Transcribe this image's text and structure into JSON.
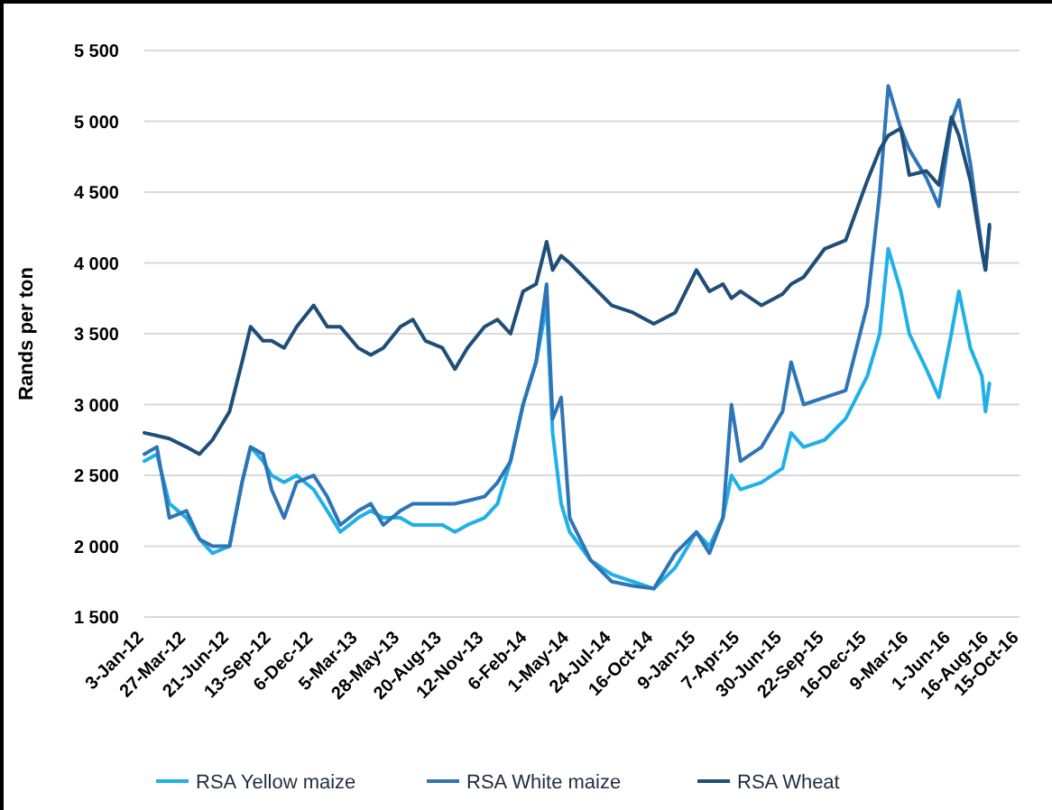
{
  "chart_data": {
    "type": "line",
    "ylabel": "Rands per ton",
    "x": [
      "2012-01-03",
      "2012-01-28",
      "2012-02-22",
      "2012-03-27",
      "2012-04-22",
      "2012-05-18",
      "2012-06-21",
      "2012-07-16",
      "2012-08-02",
      "2012-08-27",
      "2012-09-13",
      "2012-10-08",
      "2012-11-02",
      "2012-12-06",
      "2013-01-02",
      "2013-01-28",
      "2013-03-05",
      "2013-03-30",
      "2013-04-24",
      "2013-05-28",
      "2013-06-22",
      "2013-07-17",
      "2013-08-20",
      "2013-09-14",
      "2013-10-09",
      "2013-11-12",
      "2013-12-08",
      "2014-01-03",
      "2014-01-28",
      "2014-02-23",
      "2014-03-16",
      "2014-03-28",
      "2014-04-14",
      "2014-05-01",
      "2014-06-12",
      "2014-07-24",
      "2014-09-04",
      "2014-10-16",
      "2014-11-28",
      "2015-01-09",
      "2015-02-04",
      "2015-03-03",
      "2015-03-20",
      "2015-04-07",
      "2015-05-19",
      "2015-06-30",
      "2015-07-17",
      "2015-08-11",
      "2015-09-22",
      "2015-11-03",
      "2015-12-16",
      "2016-01-10",
      "2016-01-27",
      "2016-02-21",
      "2016-03-09",
      "2016-04-12",
      "2016-05-07",
      "2016-06-01",
      "2016-06-16",
      "2016-07-09",
      "2016-08-01",
      "2016-08-08",
      "2016-08-16"
    ],
    "series": [
      {
        "name": "RSA Yellow maize",
        "color": "#1fb0e8",
        "values": [
          2600,
          2650,
          2300,
          2200,
          2050,
          1950,
          2000,
          2450,
          2700,
          2600,
          2500,
          2450,
          2500,
          2400,
          2250,
          2100,
          2200,
          2250,
          2200,
          2200,
          2150,
          2150,
          2150,
          2100,
          2150,
          2200,
          2300,
          2600,
          3000,
          3300,
          3700,
          2800,
          2300,
          2100,
          1900,
          1800,
          1750,
          1700,
          1850,
          2100,
          2000,
          2200,
          2500,
          2400,
          2450,
          2550,
          2800,
          2700,
          2750,
          2900,
          3200,
          3500,
          4100,
          3800,
          3500,
          3250,
          3050,
          3500,
          3800,
          3400,
          3200,
          2950,
          3150
        ]
      },
      {
        "name": "RSA White maize",
        "color": "#2e75b6",
        "values": [
          2650,
          2700,
          2200,
          2250,
          2050,
          2000,
          2000,
          2450,
          2700,
          2650,
          2400,
          2200,
          2450,
          2500,
          2350,
          2150,
          2250,
          2300,
          2150,
          2250,
          2300,
          2300,
          2300,
          2300,
          2320,
          2350,
          2450,
          2600,
          3000,
          3300,
          3850,
          2900,
          3050,
          2200,
          1900,
          1750,
          1720,
          1700,
          1950,
          2100,
          1950,
          2200,
          3000,
          2600,
          2700,
          2950,
          3300,
          3000,
          3050,
          3100,
          3700,
          4500,
          5250,
          4950,
          4800,
          4600,
          4400,
          5000,
          5150,
          4700,
          4100,
          3950,
          4250
        ]
      },
      {
        "name": "RSA Wheat",
        "color": "#1f4e79",
        "values": [
          2800,
          2780,
          2760,
          2700,
          2650,
          2750,
          2950,
          3300,
          3550,
          3450,
          3450,
          3400,
          3550,
          3700,
          3550,
          3550,
          3400,
          3350,
          3400,
          3550,
          3600,
          3450,
          3400,
          3250,
          3400,
          3550,
          3600,
          3500,
          3800,
          3850,
          4150,
          3950,
          4050,
          4000,
          3850,
          3700,
          3650,
          3570,
          3650,
          3950,
          3800,
          3850,
          3750,
          3800,
          3700,
          3780,
          3850,
          3900,
          4100,
          4160,
          4580,
          4800,
          4900,
          4950,
          4620,
          4650,
          4550,
          5030,
          4900,
          4580,
          4080,
          3950,
          4270
        ]
      }
    ],
    "xlim": [
      "2012-01-03",
      "2016-10-15"
    ],
    "xticks": [
      {
        "value": "2012-01-03",
        "label": "3-Jan-12"
      },
      {
        "value": "2012-03-27",
        "label": "27-Mar-12"
      },
      {
        "value": "2012-06-21",
        "label": "21-Jun-12"
      },
      {
        "value": "2012-09-13",
        "label": "13-Sep-12"
      },
      {
        "value": "2012-12-06",
        "label": "6-Dec-12"
      },
      {
        "value": "2013-03-05",
        "label": "5-Mar-13"
      },
      {
        "value": "2013-05-28",
        "label": "28-May-13"
      },
      {
        "value": "2013-08-20",
        "label": "20-Aug-13"
      },
      {
        "value": "2013-11-12",
        "label": "12-Nov-13"
      },
      {
        "value": "2014-02-06",
        "label": "6-Feb-14"
      },
      {
        "value": "2014-05-01",
        "label": "1-May-14"
      },
      {
        "value": "2014-07-24",
        "label": "24-Jul-14"
      },
      {
        "value": "2014-10-16",
        "label": "16-Oct-14"
      },
      {
        "value": "2015-01-09",
        "label": "9-Jan-15"
      },
      {
        "value": "2015-04-07",
        "label": "7-Apr-15"
      },
      {
        "value": "2015-06-30",
        "label": "30-Jun-15"
      },
      {
        "value": "2015-09-22",
        "label": "22-Sep-15"
      },
      {
        "value": "2015-12-16",
        "label": "16-Dec-15"
      },
      {
        "value": "2016-03-09",
        "label": "9-Mar-16"
      },
      {
        "value": "2016-06-01",
        "label": "1-Jun-16"
      },
      {
        "value": "2016-08-16",
        "label": "16-Aug-16"
      },
      {
        "value": "2016-10-15",
        "label": "15-Oct-16"
      }
    ],
    "ylim": [
      1500,
      5500
    ],
    "yticks": [
      {
        "value": 1500,
        "label": "1 500"
      },
      {
        "value": 2000,
        "label": "2 000"
      },
      {
        "value": 2500,
        "label": "2 500"
      },
      {
        "value": 3000,
        "label": "3 000"
      },
      {
        "value": 3500,
        "label": "3 500"
      },
      {
        "value": 4000,
        "label": "4 000"
      },
      {
        "value": 4500,
        "label": "4 500"
      },
      {
        "value": 5000,
        "label": "5 000"
      },
      {
        "value": 5500,
        "label": "5 500"
      }
    ],
    "grid": "y",
    "legend": "bottom",
    "line_style": "solid",
    "marker": "none"
  }
}
